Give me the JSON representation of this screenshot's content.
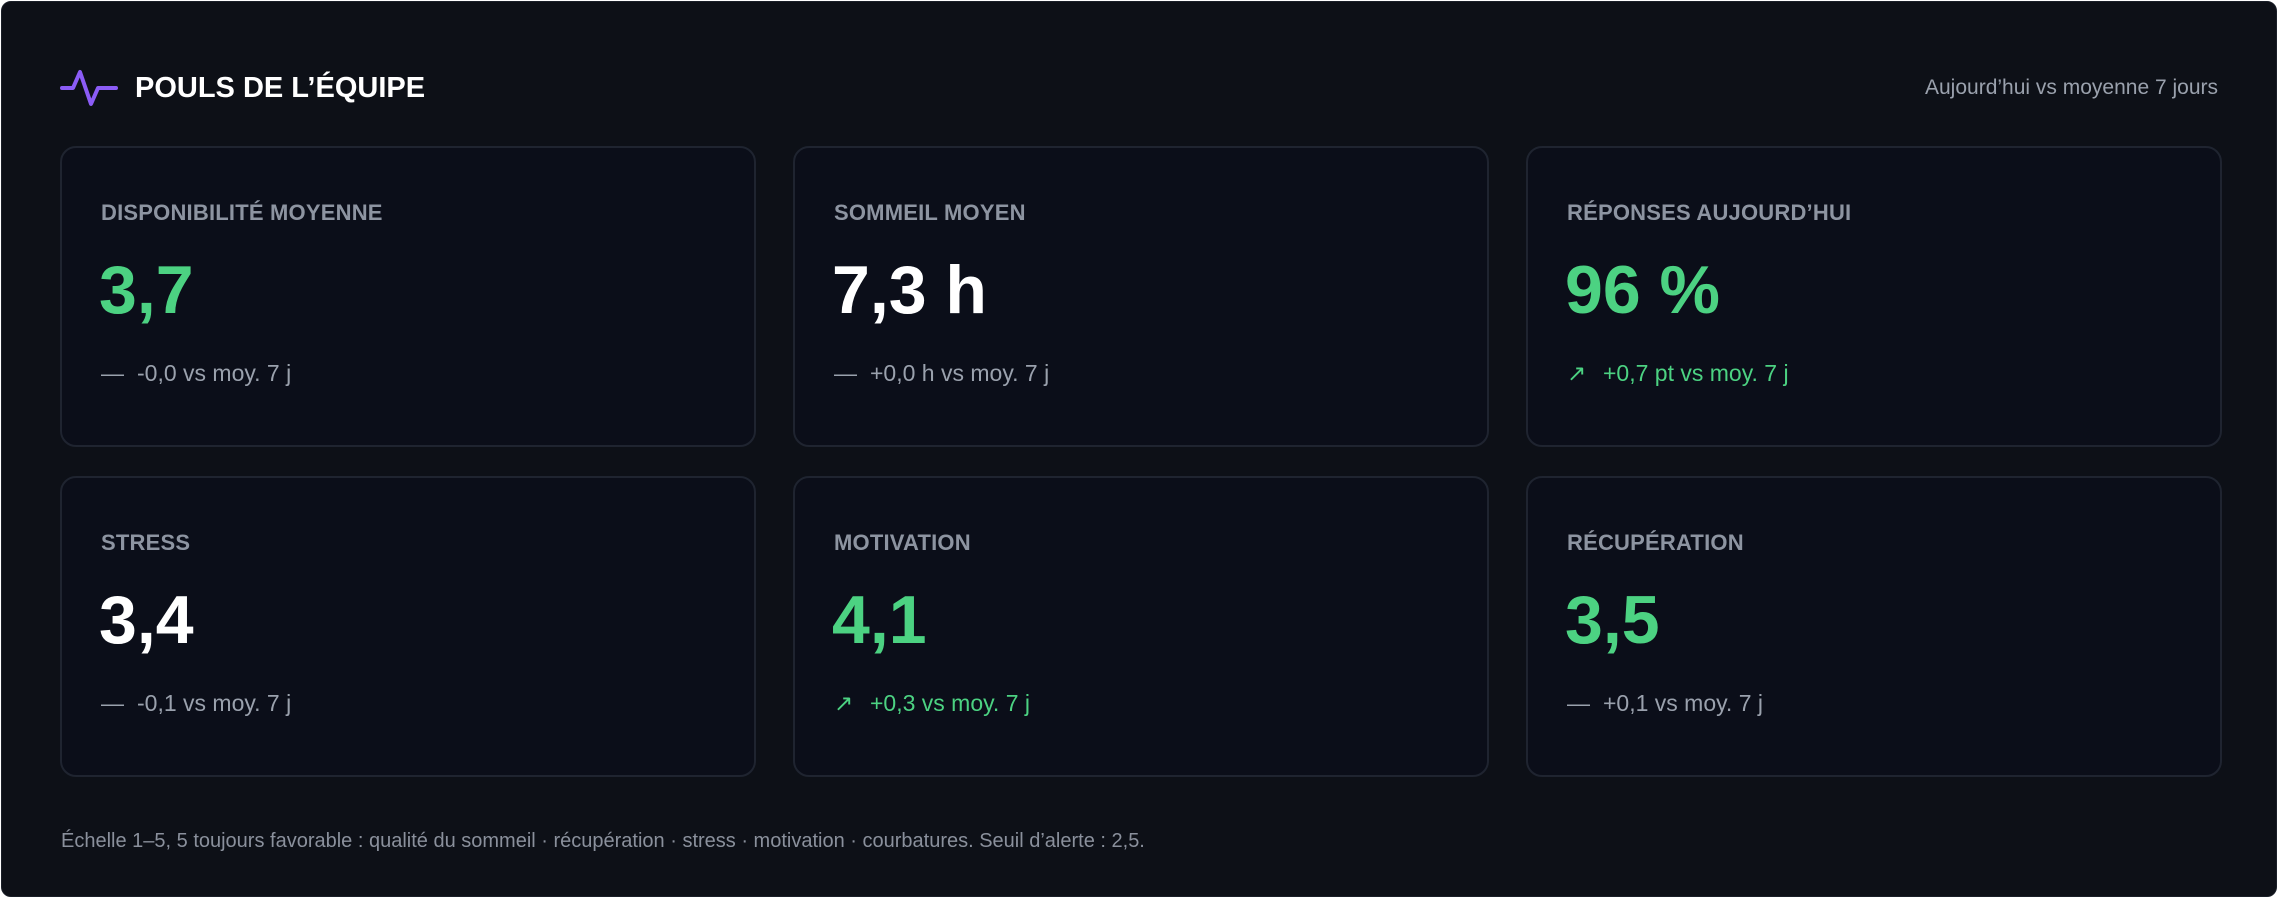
{
  "header": {
    "title": "POULS DE L’ÉQUIPE",
    "subtitle": "Aujourd’hui vs moyenne 7 jours",
    "icon": "pulse-icon",
    "icon_color": "#8b5cf6"
  },
  "colors": {
    "panel_bg": "#0d1017",
    "card_bg": "#0b0e19",
    "good": "#4cd282",
    "neutral_text": "#9aa1ad"
  },
  "cards": [
    {
      "label": "DISPONIBILITÉ MOYENNE",
      "value": "3,7",
      "value_color": "green",
      "delta_glyph": "—",
      "delta_text": "-0,0 vs moy. 7 j",
      "delta_trend": "neutral"
    },
    {
      "label": "SOMMEIL MOYEN",
      "value": "7,3 h",
      "value_color": "white",
      "delta_glyph": "—",
      "delta_text": "+0,0 h vs moy. 7 j",
      "delta_trend": "neutral"
    },
    {
      "label": "RÉPONSES AUJOURD’HUI",
      "value": "96 %",
      "value_color": "green",
      "delta_glyph": "↗",
      "delta_text": "+0,7 pt vs moy. 7 j",
      "delta_trend": "up"
    },
    {
      "label": "STRESS",
      "value": "3,4",
      "value_color": "white",
      "delta_glyph": "—",
      "delta_text": "-0,1 vs moy. 7 j",
      "delta_trend": "neutral"
    },
    {
      "label": "MOTIVATION",
      "value": "4,1",
      "value_color": "green",
      "delta_glyph": "↗",
      "delta_text": "+0,3 vs moy. 7 j",
      "delta_trend": "up"
    },
    {
      "label": "RÉCUPÉRATION",
      "value": "3,5",
      "value_color": "green",
      "delta_glyph": "—",
      "delta_text": "+0,1 vs moy. 7 j",
      "delta_trend": "neutral"
    }
  ],
  "footer": {
    "note": "Échelle 1–5, 5 toujours favorable : qualité du sommeil · récupération · stress · motivation · courbatures. Seuil d’alerte : 2,5."
  }
}
